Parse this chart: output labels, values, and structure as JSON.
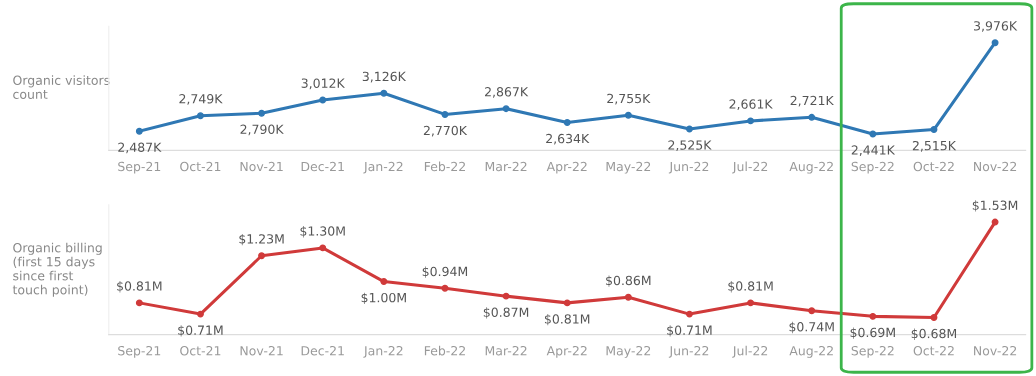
{
  "chart_data": [
    {
      "type": "line",
      "ylabel": "Organic visitors\ncount",
      "categories": [
        "Sep-21",
        "Oct-21",
        "Nov-21",
        "Dec-21",
        "Jan-22",
        "Feb-22",
        "Mar-22",
        "Apr-22",
        "May-22",
        "Jun-22",
        "Jul-22",
        "Aug-22",
        "Sep-22",
        "Oct-22",
        "Nov-22"
      ],
      "series": [
        {
          "color": "#2f78b4",
          "values": [
            2487,
            2749,
            2790,
            3012,
            3126,
            2770,
            2867,
            2634,
            2755,
            2525,
            2661,
            2721,
            2441,
            2515,
            3976
          ],
          "value_labels": [
            "2,487K",
            "2,749K",
            "2,790K",
            "3,012K",
            "3,126K",
            "2,770K",
            "2,867K",
            "2,634K",
            "2,755K",
            "2,525K",
            "2,661K",
            "2,721K",
            "2,441K",
            "2,515K",
            "3,976K"
          ]
        }
      ],
      "marker": "circle",
      "line_style": "solid"
    },
    {
      "type": "line",
      "ylabel": "Organic billing\n(first 15 days\nsince first\ntouch point)",
      "categories": [
        "Sep-21",
        "Oct-21",
        "Nov-21",
        "Dec-21",
        "Jan-22",
        "Feb-22",
        "Mar-22",
        "Apr-22",
        "May-22",
        "Jun-22",
        "Jul-22",
        "Aug-22",
        "Sep-22",
        "Oct-22",
        "Nov-22"
      ],
      "series": [
        {
          "color": "#d03a3a",
          "values": [
            0.81,
            0.71,
            1.23,
            1.3,
            1.0,
            0.94,
            0.87,
            0.81,
            0.86,
            0.71,
            0.81,
            0.74,
            0.69,
            0.68,
            1.53
          ],
          "value_labels": [
            "$0.81M",
            "$0.71M",
            "$1.23M",
            "$1.30M",
            "$1.00M",
            "$0.94M",
            "$0.87M",
            "$0.81M",
            "$0.86M",
            "$0.71M",
            "$0.81M",
            "$0.74M",
            "$0.69M",
            "$0.68M",
            "$1.53M"
          ]
        }
      ],
      "marker": "circle",
      "line_style": "solid"
    }
  ]
}
